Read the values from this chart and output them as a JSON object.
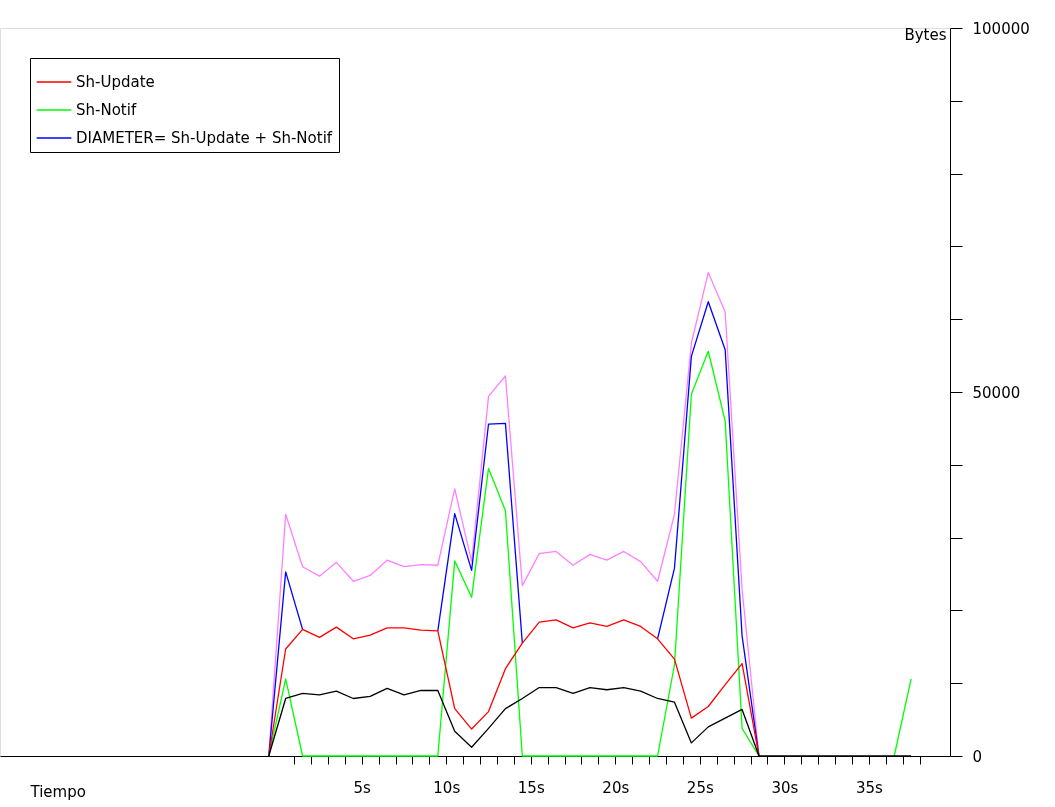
{
  "chart_data": {
    "type": "line",
    "xlabel": "Tiempo",
    "ylabel": "Bytes",
    "x": [
      -0.5,
      0.5,
      1.5,
      2.5,
      3.5,
      4.5,
      5.5,
      6.5,
      7.5,
      8.5,
      9.5,
      10.5,
      11.5,
      12.5,
      13.5,
      14.5,
      15.5,
      16.5,
      17.5,
      18.5,
      19.5,
      20.5,
      21.5,
      22.5,
      23.5,
      24.5,
      25.5,
      26.5,
      27.5,
      28.5,
      29.5,
      30.5,
      31.5,
      32.5,
      33.5,
      34.5,
      35.5,
      36.5,
      37.5
    ],
    "series": [
      {
        "color": "#000000",
        "values": [
          0,
          7900,
          8600,
          8400,
          8900,
          7900,
          8200,
          9300,
          8400,
          9000,
          9000,
          3400,
          1200,
          3800,
          6500,
          7900,
          9400,
          9400,
          8600,
          9400,
          9100,
          9400,
          8900,
          7900,
          7400,
          1800,
          4000,
          5200,
          6400,
          0,
          0,
          0,
          0,
          0,
          0,
          0,
          0,
          0,
          0
        ]
      },
      {
        "name": "Sh-Update",
        "color": "#ff0000",
        "values": [
          0,
          14700,
          17400,
          16300,
          17700,
          16100,
          16600,
          17600,
          17600,
          17300,
          17200,
          6500,
          3700,
          6100,
          12000,
          15500,
          18400,
          18700,
          17600,
          18300,
          17800,
          18700,
          17800,
          16100,
          13300,
          5200,
          6800,
          9800,
          12700,
          0,
          null,
          null,
          null,
          null,
          null,
          null,
          null,
          null,
          null
        ]
      },
      {
        "name": "Sh-Notif",
        "color": "#00ff00",
        "values": [
          0,
          10600,
          0,
          0,
          0,
          0,
          0,
          0,
          0,
          0,
          0,
          26800,
          21800,
          39500,
          33700,
          0,
          0,
          0,
          0,
          0,
          0,
          0,
          0,
          0,
          12500,
          49700,
          55600,
          46000,
          3800,
          0,
          null,
          null,
          null,
          null,
          null,
          null,
          null,
          0,
          10600
        ]
      },
      {
        "name": "DIAMETER= Sh-Update + Sh-Notif",
        "color": "#0000ff",
        "values": [
          0,
          25300,
          17400,
          null,
          null,
          null,
          null,
          null,
          null,
          null,
          17200,
          33300,
          25500,
          45600,
          45700,
          15500,
          null,
          null,
          null,
          null,
          null,
          null,
          null,
          16100,
          25800,
          54900,
          62400,
          55800,
          16500,
          0,
          null,
          null,
          null,
          null,
          null,
          null,
          null,
          null,
          null
        ]
      },
      {
        "color": "#ff80ff",
        "values": [
          0,
          33200,
          26000,
          24700,
          26600,
          24000,
          24800,
          26900,
          26000,
          26300,
          26200,
          36700,
          26700,
          49400,
          52200,
          23400,
          27800,
          28100,
          26200,
          27700,
          26900,
          28100,
          26700,
          24000,
          33200,
          56700,
          66400,
          61000,
          22900,
          0,
          null,
          null,
          null,
          null,
          null,
          null,
          null,
          null,
          null
        ]
      }
    ],
    "xlim": [
      -16.4,
      39.8
    ],
    "xticks": [
      {
        "value": 1,
        "label": null
      },
      {
        "value": 2,
        "label": null
      },
      {
        "value": 3,
        "label": null
      },
      {
        "value": 4,
        "label": null
      },
      {
        "value": 5,
        "label": "5s"
      },
      {
        "value": 6,
        "label": null
      },
      {
        "value": 7,
        "label": null
      },
      {
        "value": 8,
        "label": null
      },
      {
        "value": 9,
        "label": null
      },
      {
        "value": 10,
        "label": "10s"
      },
      {
        "value": 11,
        "label": null
      },
      {
        "value": 12,
        "label": null
      },
      {
        "value": 13,
        "label": null
      },
      {
        "value": 14,
        "label": null
      },
      {
        "value": 15,
        "label": "15s"
      },
      {
        "value": 16,
        "label": null
      },
      {
        "value": 17,
        "label": null
      },
      {
        "value": 18,
        "label": null
      },
      {
        "value": 19,
        "label": null
      },
      {
        "value": 20,
        "label": "20s"
      },
      {
        "value": 21,
        "label": null
      },
      {
        "value": 22,
        "label": null
      },
      {
        "value": 23,
        "label": null
      },
      {
        "value": 24,
        "label": null
      },
      {
        "value": 25,
        "label": "25s"
      },
      {
        "value": 26,
        "label": null
      },
      {
        "value": 27,
        "label": null
      },
      {
        "value": 28,
        "label": null
      },
      {
        "value": 29,
        "label": null
      },
      {
        "value": 30,
        "label": "30s"
      },
      {
        "value": 31,
        "label": null
      },
      {
        "value": 32,
        "label": null
      },
      {
        "value": 33,
        "label": null
      },
      {
        "value": 34,
        "label": null
      },
      {
        "value": 35,
        "label": "35s"
      },
      {
        "value": 36,
        "label": null
      },
      {
        "value": 37,
        "label": null
      },
      {
        "value": 38,
        "label": null
      }
    ],
    "ylim": [
      0,
      100000
    ],
    "yticks": [
      0,
      {
        "value": 10000,
        "label": null
      },
      {
        "value": 20000,
        "label": null
      },
      {
        "value": 30000,
        "label": null
      },
      {
        "value": 40000,
        "label": null
      },
      50000,
      {
        "value": 60000,
        "label": null
      },
      {
        "value": 70000,
        "label": null
      },
      {
        "value": 80000,
        "label": null
      },
      {
        "value": 90000,
        "label": null
      },
      100000
    ],
    "grid": false,
    "legend": "top left",
    "marker": "none",
    "line_style": "solid"
  }
}
